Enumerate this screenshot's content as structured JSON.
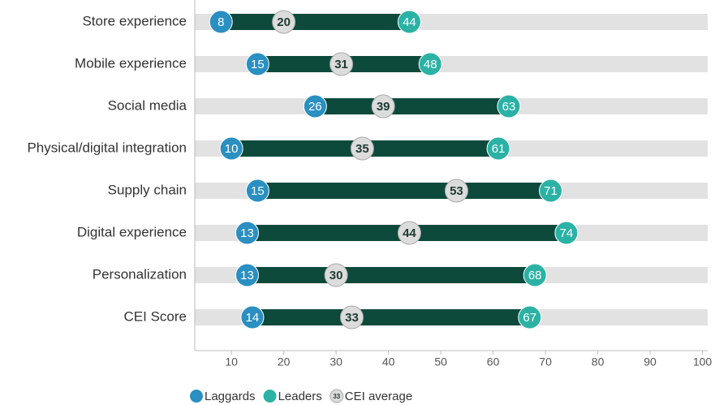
{
  "chart_data": {
    "type": "dumbbell",
    "categories": [
      "Store experience",
      "Mobile experience",
      "Social media",
      "Physical/digital integration",
      "Supply chain",
      "Digital experience",
      "Personalization",
      "CEI Score"
    ],
    "series": [
      {
        "name": "Laggards",
        "color": "#2a8fc1",
        "values": [
          8,
          15,
          26,
          10,
          15,
          13,
          13,
          14
        ]
      },
      {
        "name": "Leaders",
        "color": "#2bb2a5",
        "values": [
          44,
          48,
          63,
          61,
          71,
          74,
          68,
          67
        ]
      },
      {
        "name": "CEI average",
        "color": "#dcdcdc",
        "values": [
          20,
          31,
          39,
          35,
          53,
          44,
          30,
          33
        ]
      }
    ],
    "average_icon_label": "33",
    "xlim": [
      3,
      101
    ],
    "xticks": [
      10,
      20,
      30,
      40,
      50,
      60,
      70,
      80,
      90,
      100
    ],
    "track_color": "#e2e2e2",
    "range_color": "#0d4a3c"
  }
}
